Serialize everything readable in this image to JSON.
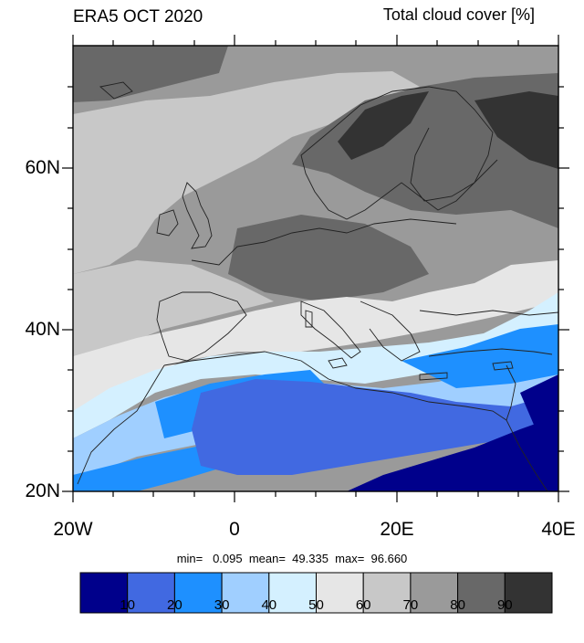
{
  "header": {
    "left_title": "ERA5 OCT 2020",
    "right_title": "Total cloud cover [%]"
  },
  "axes": {
    "lat_labels": [
      "60N",
      "40N",
      "20N"
    ],
    "lon_labels": [
      "20W",
      "0",
      "20E",
      "40E"
    ],
    "lat_range": [
      20,
      75
    ],
    "lon_range": [
      -20,
      40
    ]
  },
  "stats": {
    "text": "min=   0.095  mean=  49.335  max=  96.660"
  },
  "colorbar": {
    "labels": [
      "10",
      "20",
      "30",
      "40",
      "50",
      "60",
      "70",
      "80",
      "90"
    ],
    "colors": [
      "#00008b",
      "#4169e1",
      "#1e90ff",
      "#a0cfff",
      "#d4f0ff",
      "#e6e6e6",
      "#c8c8c8",
      "#9a9a9a",
      "#686868",
      "#333333"
    ]
  }
}
